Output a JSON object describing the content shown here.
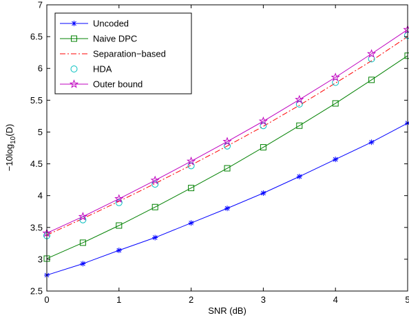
{
  "chart_data": {
    "type": "line",
    "title": "",
    "xlabel": "SNR (dB)",
    "ylabel_main": "−10log",
    "ylabel_sub": "10",
    "ylabel_tail": "(D)",
    "xlim": [
      0,
      5
    ],
    "ylim": [
      2.5,
      7
    ],
    "xticks": [
      "0",
      "1",
      "2",
      "3",
      "4",
      "5"
    ],
    "yticks": [
      "2.5",
      "3",
      "3.5",
      "4",
      "4.5",
      "5",
      "5.5",
      "6",
      "6.5",
      "7"
    ],
    "grid": false,
    "legend_position": "top-left",
    "x": [
      0,
      0.5,
      1,
      1.5,
      2,
      2.5,
      3,
      3.5,
      4,
      4.5,
      5
    ],
    "series": [
      {
        "name": "Uncoded",
        "color": "#0000ff",
        "line": "solid",
        "marker": "asterisk",
        "values": [
          2.75,
          2.93,
          3.14,
          3.34,
          3.57,
          3.8,
          4.04,
          4.3,
          4.57,
          4.84,
          5.14
        ]
      },
      {
        "name": "Naive DPC",
        "color": "#008000",
        "line": "solid",
        "marker": "square",
        "values": [
          3.01,
          3.26,
          3.53,
          3.82,
          4.12,
          4.43,
          4.76,
          5.1,
          5.45,
          5.82,
          6.2
        ]
      },
      {
        "name": "Separation−based",
        "color": "#ff0000",
        "line": "dashdot",
        "marker": "none",
        "values": [
          3.38,
          3.64,
          3.91,
          4.19,
          4.48,
          4.78,
          5.09,
          5.42,
          5.77,
          6.12,
          6.5
        ]
      },
      {
        "name": "HDA",
        "color": "#00bfbf",
        "line": "none",
        "marker": "circle",
        "values": [
          3.37,
          3.62,
          3.89,
          4.18,
          4.47,
          4.78,
          5.1,
          5.44,
          5.78,
          6.15,
          6.52
        ]
      },
      {
        "name": "Outer bound",
        "color": "#bf00bf",
        "line": "solid",
        "marker": "star",
        "values": [
          3.41,
          3.67,
          3.95,
          4.24,
          4.54,
          4.85,
          5.17,
          5.51,
          5.86,
          6.23,
          6.61
        ]
      }
    ]
  }
}
